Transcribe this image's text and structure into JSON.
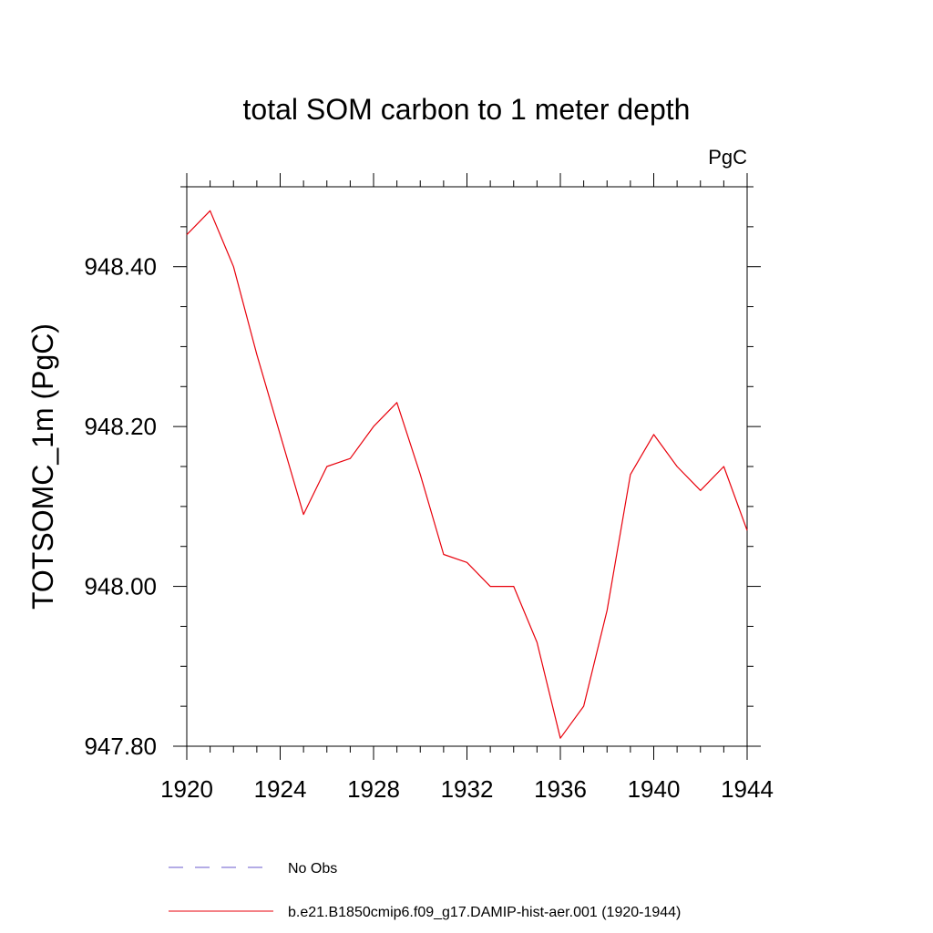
{
  "chart_data": {
    "type": "line",
    "title": "total SOM carbon to 1 meter depth",
    "units_label": "PgC",
    "ylabel": "TOTSOMC_1m  (PgC)",
    "xlabel": "",
    "xlim": [
      1920,
      1944
    ],
    "ylim": [
      947.8,
      948.5
    ],
    "x_ticks": [
      1920,
      1924,
      1928,
      1932,
      1936,
      1940,
      1944
    ],
    "x_tick_labels": [
      "1920",
      "1924",
      "1928",
      "1932",
      "1936",
      "1940",
      "1944"
    ],
    "y_ticks": [
      947.8,
      948.0,
      948.2,
      948.4
    ],
    "y_tick_labels": [
      "947.80",
      "948.00",
      "948.20",
      "948.40"
    ],
    "grid": false,
    "legend_placement": "bottom",
    "legend": [
      {
        "label": "No Obs",
        "color": "#6a5acd",
        "dash": "dashed"
      },
      {
        "label": "b.e21.B1850cmip6.f09_g17.DAMIP-hist-aer.001 (1920-1944)",
        "color": "#e8000b",
        "dash": "solid"
      }
    ],
    "series": [
      {
        "name": "b.e21.B1850cmip6.f09_g17.DAMIP-hist-aer.001 (1920-1944)",
        "color": "#e8000b",
        "x": [
          1920,
          1921,
          1922,
          1923,
          1924,
          1925,
          1926,
          1927,
          1928,
          1929,
          1930,
          1931,
          1932,
          1933,
          1934,
          1935,
          1936,
          1937,
          1938,
          1939,
          1940,
          1941,
          1942,
          1943,
          1944
        ],
        "values": [
          948.44,
          948.47,
          948.4,
          948.29,
          948.19,
          948.09,
          948.15,
          948.16,
          948.2,
          948.23,
          948.14,
          948.04,
          948.03,
          948.0,
          948.0,
          947.93,
          947.81,
          947.85,
          947.97,
          948.14,
          948.19,
          948.15,
          948.12,
          948.15,
          948.07
        ]
      }
    ]
  }
}
